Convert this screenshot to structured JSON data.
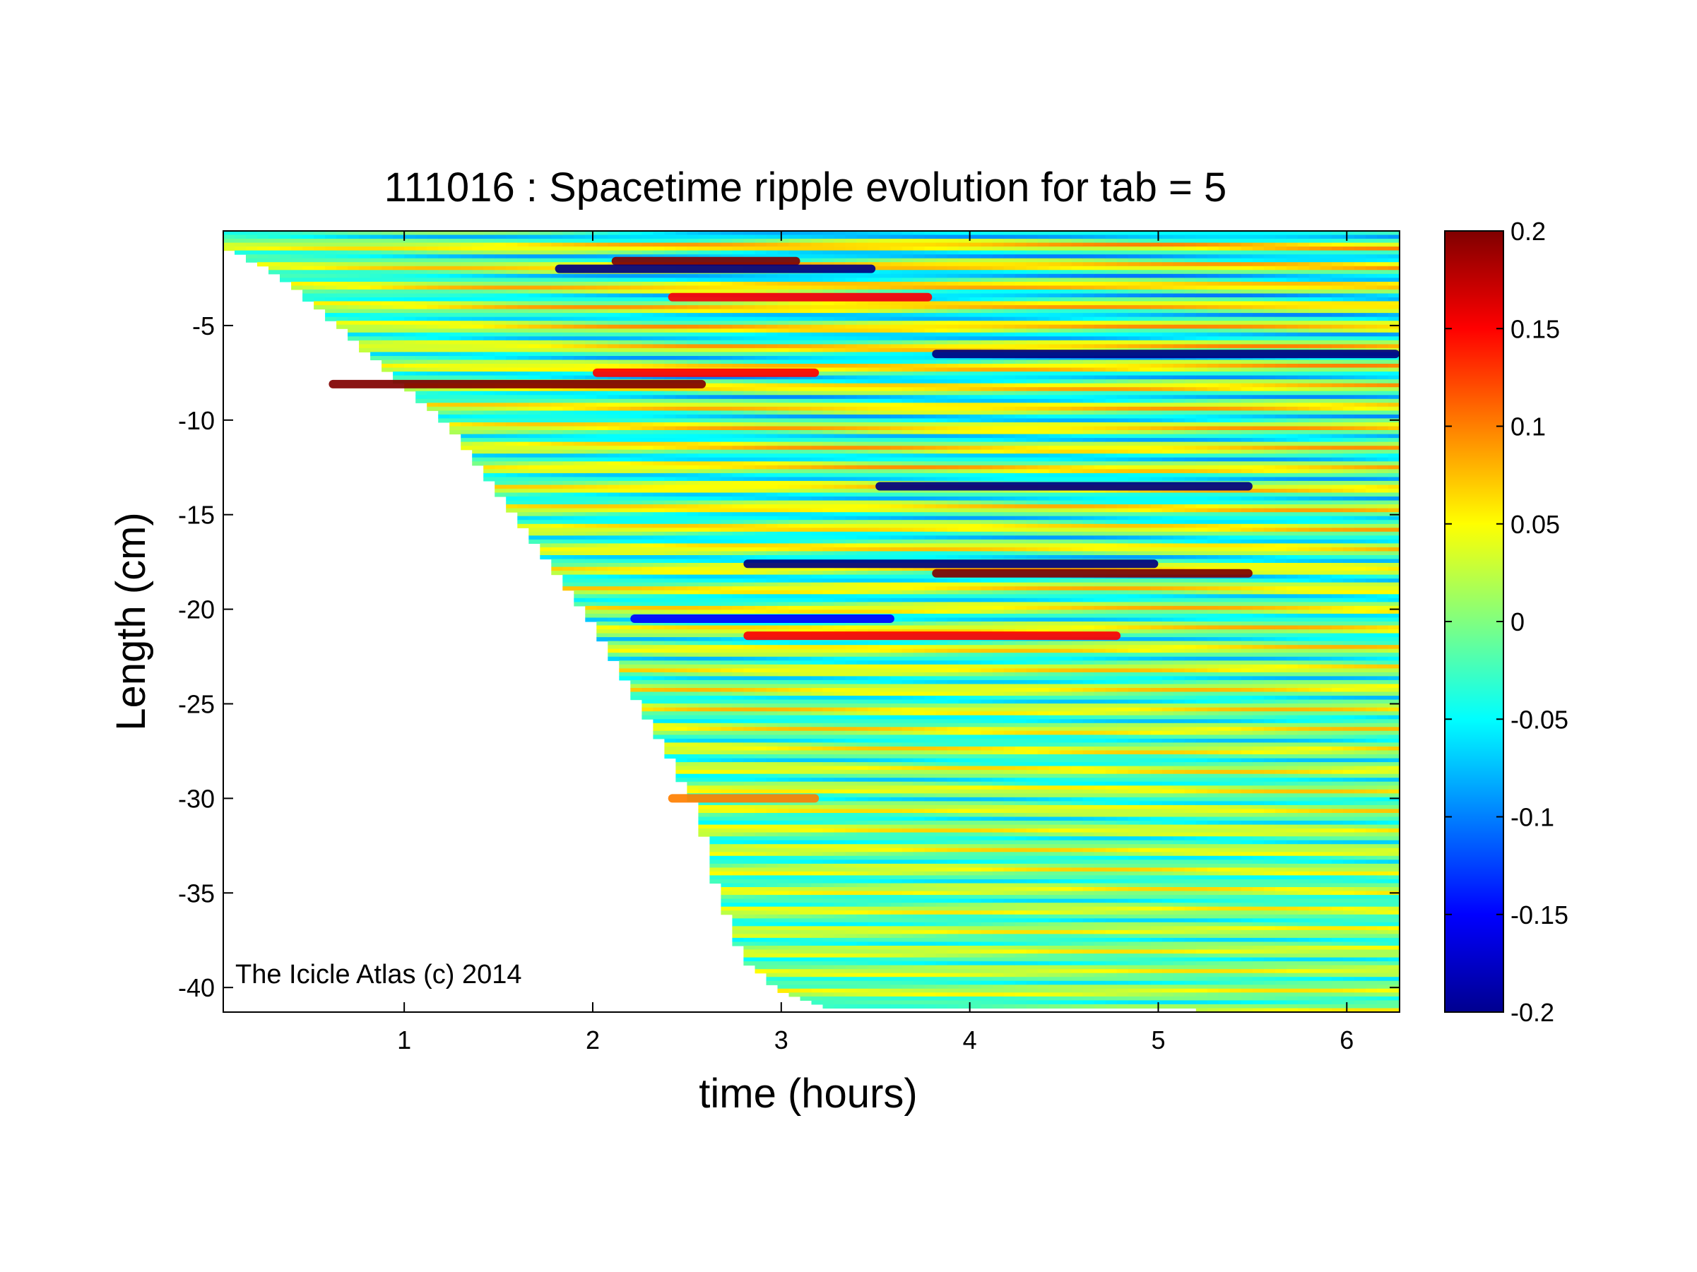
{
  "chart_data": {
    "type": "heatmap",
    "title": "111016 : Spacetime ripple evolution for tab = 5",
    "xlabel": "time (hours)",
    "ylabel": "Length (cm)",
    "xlim": [
      0.04,
      6.28
    ],
    "ylim": [
      -41.3,
      0
    ],
    "x_ticks": [
      1,
      2,
      3,
      4,
      5,
      6
    ],
    "x_tick_labels": [
      "1",
      "2",
      "3",
      "4",
      "5",
      "6"
    ],
    "y_ticks": [
      -5,
      -10,
      -15,
      -20,
      -25,
      -30,
      -35,
      -40
    ],
    "y_tick_labels": [
      "-5",
      "-10",
      "-15",
      "-20",
      "-25",
      "-30",
      "-35",
      "-40"
    ],
    "colorbar": {
      "colormap": "jet",
      "range": [
        -0.2,
        0.2
      ],
      "ticks": [
        0.2,
        0.15,
        0.1,
        0.05,
        0,
        -0.05,
        -0.1,
        -0.15,
        -0.2
      ],
      "tick_labels": [
        "0.2",
        "0.15",
        "0.1",
        "0.05",
        "0",
        "-0.05",
        "-0.1",
        "-0.15",
        "-0.2"
      ]
    },
    "growth_front": [
      {
        "t": 0.04,
        "length": -0.8
      },
      {
        "t": 0.35,
        "length": -2.5
      },
      {
        "t": 0.7,
        "length": -5.5
      },
      {
        "t": 1.25,
        "length": -10.5
      },
      {
        "t": 1.95,
        "length": -20.0
      },
      {
        "t": 2.3,
        "length": -26.0
      },
      {
        "t": 2.55,
        "length": -30.5
      },
      {
        "t": 2.65,
        "length": -34.5
      },
      {
        "t": 2.8,
        "length": -38.5
      },
      {
        "t": 3.0,
        "length": -40.2
      },
      {
        "t": 3.2,
        "length": -41.0
      },
      {
        "t": 6.28,
        "length": -41.3
      }
    ],
    "strong_ripples": [
      {
        "length": -1.6,
        "value": 0.2,
        "t_start": 2.1,
        "t_end": 3.1
      },
      {
        "length": -2.0,
        "value": -0.2,
        "t_start": 1.8,
        "t_end": 3.5
      },
      {
        "length": -3.5,
        "value": 0.15,
        "t_start": 2.4,
        "t_end": 3.8
      },
      {
        "length": -6.5,
        "value": -0.2,
        "t_start": 3.8,
        "t_end": 6.28
      },
      {
        "length": -7.5,
        "value": 0.15,
        "t_start": 2.0,
        "t_end": 3.2
      },
      {
        "length": -8.1,
        "value": 0.2,
        "t_start": 0.6,
        "t_end": 2.6
      },
      {
        "length": -13.5,
        "value": -0.2,
        "t_start": 3.5,
        "t_end": 5.5
      },
      {
        "length": -17.6,
        "value": -0.2,
        "t_start": 2.8,
        "t_end": 5.0
      },
      {
        "length": -18.1,
        "value": 0.2,
        "t_start": 3.8,
        "t_end": 5.5
      },
      {
        "length": -20.5,
        "value": -0.15,
        "t_start": 2.2,
        "t_end": 3.6
      },
      {
        "length": -21.4,
        "value": 0.15,
        "t_start": 2.8,
        "t_end": 4.8
      },
      {
        "length": -30.0,
        "value": 0.1,
        "t_start": 2.4,
        "t_end": 3.2
      }
    ],
    "watermark": "The Icicle Atlas (c) 2014"
  },
  "colors": {
    "jet_min": "#00008f",
    "jet_zero": "#80ff80",
    "jet_max": "#800000",
    "axes": "#000000",
    "background": "#ffffff"
  }
}
